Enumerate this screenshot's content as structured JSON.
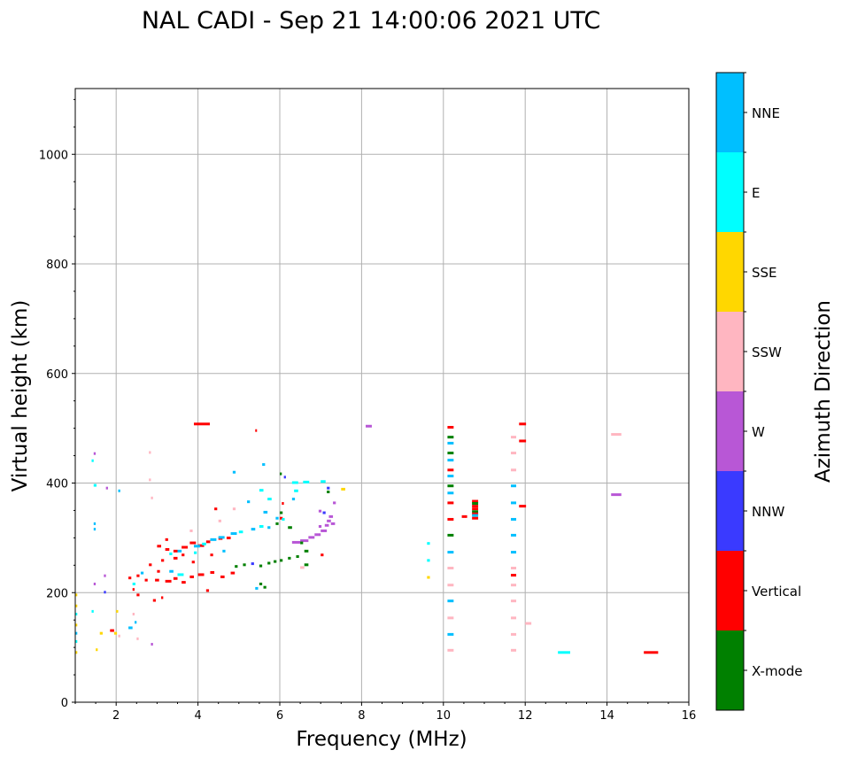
{
  "chart_data": {
    "type": "scatter",
    "title": "NAL CADI - Sep 21 14:00:06 2021 UTC",
    "xlabel": "Frequency (MHz)",
    "ylabel": "Virtual height (km)",
    "xlim": [
      1,
      16
    ],
    "ylim": [
      0,
      1120
    ],
    "xticks": [
      2,
      4,
      6,
      8,
      10,
      12,
      14,
      16
    ],
    "yticks": [
      0,
      200,
      400,
      600,
      800,
      1000
    ],
    "grid": true,
    "colorbar": {
      "label": "Azimuth Direction",
      "categories": [
        "X-mode",
        "Vertical",
        "NNW",
        "W",
        "SSW",
        "SSE",
        "E",
        "NNE"
      ],
      "colors": [
        "#008000",
        "#ff0000",
        "#3a3aff",
        "#b857d6",
        "#ffb6c1",
        "#ffd700",
        "#00ffff",
        "#00bfff"
      ]
    },
    "point_format": [
      "frequency_mhz",
      "height_km",
      "category_index",
      "width_mhz"
    ],
    "points": [
      [
        3.9,
        507,
        1,
        0.39
      ],
      [
        5.4,
        495,
        1,
        0.04
      ],
      [
        8.1,
        503,
        3,
        0.15
      ],
      [
        14.1,
        488,
        4,
        0.25
      ],
      [
        14.1,
        378,
        3,
        0.25
      ],
      [
        12.8,
        90,
        6,
        0.3
      ],
      [
        14.9,
        90,
        1,
        0.35
      ],
      [
        9.6,
        289,
        6,
        0.07
      ],
      [
        9.6,
        258,
        6,
        0.07
      ],
      [
        9.6,
        227,
        5,
        0.07
      ],
      [
        10.1,
        501,
        1,
        0.15
      ],
      [
        10.1,
        483,
        0,
        0.15
      ],
      [
        10.1,
        472,
        7,
        0.15
      ],
      [
        10.1,
        454,
        0,
        0.15
      ],
      [
        10.1,
        441,
        7,
        0.15
      ],
      [
        10.1,
        423,
        1,
        0.15
      ],
      [
        10.1,
        412,
        7,
        0.15
      ],
      [
        10.1,
        394,
        0,
        0.15
      ],
      [
        10.1,
        381,
        7,
        0.15
      ],
      [
        10.1,
        363,
        1,
        0.15
      ],
      [
        10.1,
        333,
        1,
        0.15
      ],
      [
        10.1,
        304,
        0,
        0.15
      ],
      [
        10.1,
        273,
        7,
        0.15
      ],
      [
        10.1,
        244,
        4,
        0.15
      ],
      [
        10.1,
        213,
        4,
        0.15
      ],
      [
        10.1,
        184,
        7,
        0.15
      ],
      [
        10.1,
        153,
        4,
        0.15
      ],
      [
        10.1,
        123,
        7,
        0.15
      ],
      [
        10.1,
        94,
        4,
        0.15
      ],
      [
        11.65,
        483,
        4,
        0.13
      ],
      [
        11.85,
        507,
        1,
        0.17
      ],
      [
        11.85,
        476,
        1,
        0.17
      ],
      [
        11.65,
        454,
        4,
        0.13
      ],
      [
        11.65,
        423,
        4,
        0.13
      ],
      [
        11.65,
        394,
        7,
        0.13
      ],
      [
        11.65,
        363,
        7,
        0.13
      ],
      [
        11.85,
        357,
        1,
        0.17
      ],
      [
        11.65,
        333,
        7,
        0.13
      ],
      [
        11.65,
        304,
        7,
        0.13
      ],
      [
        11.65,
        273,
        7,
        0.13
      ],
      [
        11.65,
        244,
        4,
        0.13
      ],
      [
        11.65,
        231,
        1,
        0.13
      ],
      [
        11.65,
        213,
        4,
        0.13
      ],
      [
        11.65,
        184,
        4,
        0.13
      ],
      [
        11.65,
        153,
        4,
        0.13
      ],
      [
        12.0,
        143,
        4,
        0.15
      ],
      [
        11.65,
        123,
        4,
        0.13
      ],
      [
        11.65,
        94,
        4,
        0.13
      ],
      [
        10.7,
        366,
        1,
        0.15
      ],
      [
        10.7,
        362,
        0,
        0.15
      ],
      [
        10.7,
        357,
        1,
        0.15
      ],
      [
        10.7,
        352,
        1,
        0.15
      ],
      [
        10.7,
        347,
        0,
        0.15
      ],
      [
        10.7,
        343,
        1,
        0.15
      ],
      [
        10.7,
        340,
        7,
        0.15
      ],
      [
        10.7,
        335,
        1,
        0.15
      ],
      [
        10.45,
        338,
        1,
        0.13
      ],
      [
        6.3,
        291,
        3,
        0.2
      ],
      [
        6.5,
        294,
        3,
        0.2
      ],
      [
        6.7,
        300,
        3,
        0.15
      ],
      [
        6.85,
        305,
        3,
        0.15
      ],
      [
        7.0,
        312,
        3,
        0.15
      ],
      [
        7.1,
        322,
        3,
        0.1
      ],
      [
        7.15,
        330,
        3,
        0.1
      ],
      [
        7.2,
        338,
        3,
        0.1
      ],
      [
        7.25,
        325,
        3,
        0.1
      ],
      [
        6.95,
        320,
        3,
        0.07
      ],
      [
        7.3,
        363,
        3,
        0.07
      ],
      [
        7.15,
        390,
        2,
        0.07
      ],
      [
        7.15,
        383,
        0,
        0.07
      ],
      [
        7.5,
        388,
        5,
        0.1
      ],
      [
        6.95,
        348,
        3,
        0.07
      ],
      [
        7.05,
        345,
        2,
        0.07
      ],
      [
        4.9,
        247,
        0,
        0.07
      ],
      [
        5.1,
        250,
        0,
        0.07
      ],
      [
        5.3,
        252,
        2,
        0.07
      ],
      [
        5.5,
        248,
        0,
        0.07
      ],
      [
        5.7,
        253,
        0,
        0.07
      ],
      [
        5.85,
        256,
        0,
        0.07
      ],
      [
        6.0,
        258,
        0,
        0.07
      ],
      [
        6.2,
        262,
        0,
        0.07
      ],
      [
        6.4,
        265,
        0,
        0.07
      ],
      [
        6.6,
        250,
        0,
        0.1
      ],
      [
        6.5,
        245,
        4,
        0.1
      ],
      [
        5.5,
        215,
        0,
        0.07
      ],
      [
        5.6,
        209,
        0,
        0.07
      ],
      [
        5.4,
        207,
        7,
        0.07
      ],
      [
        6.0,
        345,
        0,
        0.07
      ],
      [
        6.0,
        335,
        1,
        0.07
      ],
      [
        6.2,
        318,
        0,
        0.1
      ],
      [
        5.9,
        325,
        0,
        0.07
      ],
      [
        6.0,
        416,
        0,
        0.05
      ],
      [
        7.0,
        268,
        1,
        0.07
      ],
      [
        6.6,
        275,
        0,
        0.1
      ],
      [
        6.5,
        290,
        0,
        0.07
      ],
      [
        2.3,
        226,
        1,
        0.07
      ],
      [
        2.5,
        230,
        1,
        0.07
      ],
      [
        2.7,
        222,
        1,
        0.07
      ],
      [
        2.95,
        222,
        1,
        0.1
      ],
      [
        3.2,
        220,
        1,
        0.15
      ],
      [
        3.4,
        225,
        1,
        0.1
      ],
      [
        3.6,
        218,
        1,
        0.1
      ],
      [
        3.8,
        228,
        1,
        0.1
      ],
      [
        4.0,
        232,
        1,
        0.15
      ],
      [
        4.3,
        236,
        1,
        0.1
      ],
      [
        4.55,
        228,
        1,
        0.1
      ],
      [
        4.8,
        235,
        1,
        0.1
      ],
      [
        3.0,
        238,
        1,
        0.07
      ],
      [
        3.3,
        238,
        7,
        0.1
      ],
      [
        3.5,
        232,
        6,
        0.15
      ],
      [
        2.5,
        195,
        1,
        0.07
      ],
      [
        2.4,
        205,
        1,
        0.05
      ],
      [
        2.9,
        185,
        1,
        0.07
      ],
      [
        3.1,
        190,
        1,
        0.05
      ],
      [
        4.2,
        203,
        1,
        0.07
      ],
      [
        3.0,
        284,
        1,
        0.1
      ],
      [
        3.2,
        278,
        1,
        0.1
      ],
      [
        3.4,
        275,
        1,
        0.1
      ],
      [
        3.6,
        282,
        1,
        0.15
      ],
      [
        3.8,
        290,
        1,
        0.15
      ],
      [
        4.0,
        285,
        1,
        0.15
      ],
      [
        4.2,
        292,
        1,
        0.1
      ],
      [
        4.5,
        298,
        1,
        0.1
      ],
      [
        4.7,
        299,
        1,
        0.1
      ],
      [
        3.4,
        262,
        1,
        0.1
      ],
      [
        3.6,
        268,
        1,
        0.07
      ],
      [
        3.1,
        258,
        1,
        0.07
      ],
      [
        4.3,
        268,
        1,
        0.07
      ],
      [
        2.8,
        250,
        1,
        0.07
      ],
      [
        3.2,
        296,
        1,
        0.07
      ],
      [
        3.85,
        255,
        1,
        0.07
      ],
      [
        3.9,
        284,
        7,
        0.15
      ],
      [
        4.1,
        288,
        6,
        0.1
      ],
      [
        4.3,
        296,
        7,
        0.15
      ],
      [
        4.5,
        300,
        7,
        0.15
      ],
      [
        4.8,
        307,
        7,
        0.15
      ],
      [
        5.0,
        310,
        6,
        0.1
      ],
      [
        5.3,
        315,
        7,
        0.1
      ],
      [
        5.5,
        320,
        6,
        0.1
      ],
      [
        5.7,
        318,
        7,
        0.07
      ],
      [
        5.9,
        335,
        7,
        0.07
      ],
      [
        6.05,
        333,
        6,
        0.07
      ],
      [
        3.3,
        270,
        6,
        0.07
      ],
      [
        3.5,
        275,
        7,
        0.1
      ],
      [
        2.6,
        235,
        7,
        0.07
      ],
      [
        2.4,
        215,
        6,
        0.07
      ],
      [
        4.6,
        275,
        7,
        0.07
      ],
      [
        3.9,
        272,
        6,
        0.07
      ],
      [
        5.57,
        433,
        7,
        0.07
      ],
      [
        4.85,
        419,
        7,
        0.07
      ],
      [
        6.57,
        401,
        6,
        0.15
      ],
      [
        7.0,
        402,
        6,
        0.12
      ],
      [
        6.3,
        400,
        6,
        0.15
      ],
      [
        5.7,
        370,
        6,
        0.1
      ],
      [
        6.3,
        370,
        7,
        0.07
      ],
      [
        5.2,
        365,
        7,
        0.07
      ],
      [
        5.5,
        386,
        6,
        0.1
      ],
      [
        6.35,
        385,
        6,
        0.1
      ],
      [
        4.4,
        352,
        1,
        0.07
      ],
      [
        4.5,
        330,
        4,
        0.07
      ],
      [
        4.85,
        352,
        4,
        0.07
      ],
      [
        3.8,
        312,
        4,
        0.07
      ],
      [
        5.6,
        346,
        7,
        0.1
      ],
      [
        6.05,
        362,
        1,
        0.05
      ],
      [
        6.1,
        410,
        2,
        0.05
      ],
      [
        2.8,
        455,
        4,
        0.05
      ],
      [
        2.8,
        405,
        4,
        0.05
      ],
      [
        2.85,
        372,
        4,
        0.05
      ],
      [
        2.05,
        385,
        7,
        0.05
      ],
      [
        1.75,
        390,
        3,
        0.05
      ],
      [
        1.45,
        453,
        3,
        0.05
      ],
      [
        1.4,
        440,
        6,
        0.05
      ],
      [
        1.45,
        395,
        6,
        0.07
      ],
      [
        1.45,
        325,
        7,
        0.05
      ],
      [
        1.45,
        315,
        7,
        0.05
      ],
      [
        1.7,
        230,
        3,
        0.05
      ],
      [
        1.7,
        200,
        2,
        0.05
      ],
      [
        1.45,
        215,
        3,
        0.05
      ],
      [
        2.85,
        105,
        3,
        0.05
      ],
      [
        1.0,
        90,
        5,
        0.05
      ],
      [
        1.0,
        110,
        6,
        0.05
      ],
      [
        1.0,
        125,
        7,
        0.05
      ],
      [
        1.0,
        140,
        5,
        0.05
      ],
      [
        1.0,
        160,
        6,
        0.05
      ],
      [
        1.0,
        175,
        5,
        0.05
      ],
      [
        1.0,
        195,
        5,
        0.05
      ],
      [
        1.5,
        95,
        5,
        0.05
      ],
      [
        1.6,
        125,
        5,
        0.07
      ],
      [
        1.85,
        130,
        1,
        0.1
      ],
      [
        1.95,
        125,
        5,
        0.07
      ],
      [
        2.0,
        165,
        5,
        0.05
      ],
      [
        2.05,
        120,
        4,
        0.05
      ],
      [
        2.3,
        135,
        7,
        0.1
      ],
      [
        2.45,
        145,
        7,
        0.05
      ],
      [
        2.4,
        160,
        4,
        0.05
      ],
      [
        2.5,
        115,
        4,
        0.05
      ],
      [
        1.4,
        165,
        6,
        0.05
      ]
    ]
  }
}
